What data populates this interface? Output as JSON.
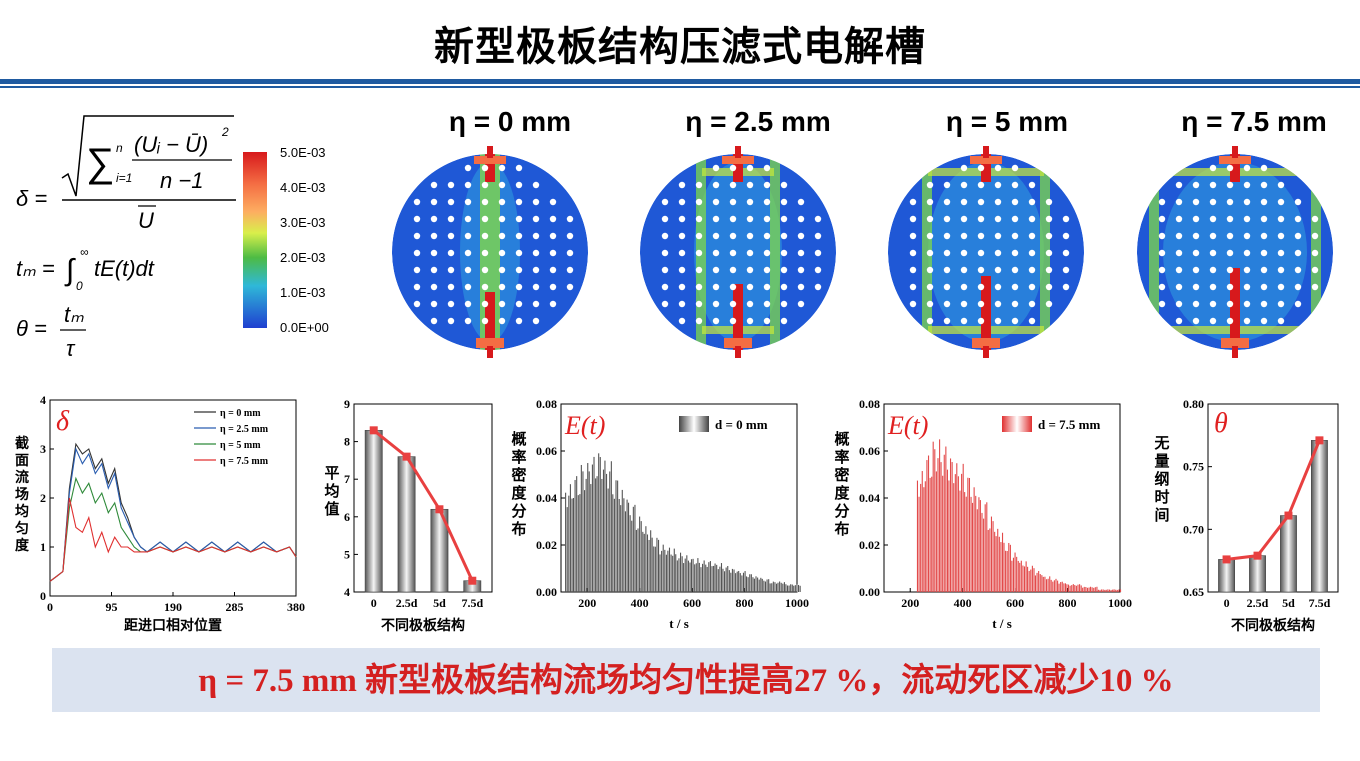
{
  "title": "新型极板结构压滤式电解槽",
  "formulas": {
    "delta_lhs": "δ =",
    "delta_sum": "∑",
    "delta_sum_lower": "i=1",
    "delta_sum_upper": "n",
    "delta_num": "(Uᵢ − Ū)",
    "delta_sq": "2",
    "delta_den": "n −1",
    "delta_outer_den": "U",
    "tm_lhs": "tₘ =",
    "tm_int": "∫",
    "tm_lower": "0",
    "tm_upper": "∞",
    "tm_body": "tE(t)dt",
    "theta_lhs": "θ =",
    "theta_num": "tₘ",
    "theta_den": "τ"
  },
  "colorbar": {
    "ticks": [
      "5.0E-03",
      "4.0E-03",
      "3.0E-03",
      "2.0E-03",
      "1.0E-03",
      "0.0E+00"
    ],
    "colors": [
      "#d7191c",
      "#fdae61",
      "#d9ef4b",
      "#4dbb44",
      "#2fb8d8",
      "#1f3fd0"
    ]
  },
  "contours": [
    {
      "label": "η = 0 mm",
      "level": 0
    },
    {
      "label": "η = 2.5 mm",
      "level": 1
    },
    {
      "label": "η = 5 mm",
      "level": 2
    },
    {
      "label": "η = 7.5 mm",
      "level": 3
    }
  ],
  "charts": {
    "uniformity": {
      "symbol": "δ",
      "ylabel": "截面流场均匀度",
      "xlabel": "距进口相对位置",
      "xticks": [
        "0",
        "95",
        "190",
        "285",
        "380"
      ],
      "yticks": [
        "0",
        "1",
        "2",
        "3",
        "4"
      ],
      "legend": [
        "η = 0 mm",
        "η = 2.5 mm",
        "η = 5 mm",
        "η = 7.5 mm"
      ],
      "colors": [
        "#333333",
        "#2a5db0",
        "#2f8a3a",
        "#e03030"
      ]
    },
    "average": {
      "ylabel": "平均值",
      "xlabel": "不同极板结构",
      "xticks": [
        "0",
        "2.5d",
        "5d",
        "7.5d"
      ],
      "yticks": [
        "4",
        "5",
        "6",
        "7",
        "8",
        "9"
      ]
    },
    "rtd0": {
      "symbol": "E(t)",
      "legend": "d = 0 mm",
      "ylabel": "概率密度分布",
      "xlabel": "t / s",
      "xticks": [
        "200",
        "400",
        "600",
        "800",
        "1000"
      ],
      "yticks": [
        "0.00",
        "0.02",
        "0.04",
        "0.06",
        "0.08"
      ]
    },
    "rtd75": {
      "symbol": "E(t)",
      "legend": "d = 7.5 mm",
      "ylabel": "概率密度分布",
      "xlabel": "t / s",
      "xticks": [
        "200",
        "400",
        "600",
        "800",
        "1000"
      ],
      "yticks": [
        "0.00",
        "0.02",
        "0.04",
        "0.06",
        "0.08"
      ]
    },
    "theta": {
      "symbol": "θ",
      "ylabel": "无量纲时间",
      "xlabel": "不同极板结构",
      "xticks": [
        "0",
        "2.5d",
        "5d",
        "7.5d"
      ],
      "yticks": [
        "0.65",
        "0.70",
        "0.75",
        "0.80"
      ]
    }
  },
  "chart_data": [
    {
      "type": "line",
      "xlabel": "距进口相对位置",
      "ylabel": "截面流场均匀度",
      "xlim": [
        0,
        380
      ],
      "ylim": [
        0,
        4
      ],
      "series": [
        {
          "name": "η = 0 mm",
          "x": [
            0,
            10,
            20,
            30,
            40,
            50,
            60,
            70,
            80,
            90,
            100,
            110,
            120,
            130,
            140,
            150,
            170,
            190,
            210,
            230,
            250,
            270,
            290,
            310,
            330,
            350,
            370,
            380
          ],
          "values": [
            0.3,
            0.4,
            0.5,
            2.2,
            3.1,
            2.9,
            3.0,
            2.6,
            2.8,
            2.3,
            2.6,
            1.9,
            1.6,
            1.2,
            1.0,
            0.9,
            1.1,
            0.9,
            1.1,
            0.9,
            1.1,
            0.9,
            1.1,
            0.9,
            1.1,
            0.9,
            1.0,
            0.8
          ]
        },
        {
          "name": "η = 2.5 mm",
          "x": [
            0,
            10,
            20,
            30,
            40,
            50,
            60,
            70,
            80,
            90,
            100,
            110,
            120,
            130,
            140,
            150,
            170,
            190,
            210,
            230,
            250,
            270,
            290,
            310,
            330,
            350,
            370,
            380
          ],
          "values": [
            0.3,
            0.4,
            0.5,
            2.1,
            3.0,
            2.7,
            2.9,
            2.5,
            2.7,
            2.2,
            2.5,
            1.8,
            1.5,
            1.2,
            1.0,
            0.9,
            1.1,
            0.9,
            1.1,
            0.9,
            1.1,
            0.9,
            1.1,
            0.9,
            1.1,
            0.9,
            1.0,
            0.8
          ]
        },
        {
          "name": "η = 5 mm",
          "x": [
            0,
            10,
            20,
            30,
            40,
            50,
            60,
            70,
            80,
            90,
            100,
            110,
            120,
            130,
            140,
            150,
            170,
            190,
            210,
            230,
            250,
            270,
            290,
            310,
            330,
            350,
            370,
            380
          ],
          "values": [
            0.3,
            0.4,
            0.5,
            1.8,
            2.4,
            2.1,
            2.3,
            1.9,
            2.1,
            1.7,
            1.9,
            1.4,
            1.2,
            1.0,
            0.9,
            0.9,
            1.0,
            0.9,
            1.0,
            0.9,
            1.0,
            0.9,
            1.0,
            0.9,
            1.0,
            0.9,
            1.0,
            0.8
          ]
        },
        {
          "name": "η = 7.5 mm",
          "x": [
            0,
            10,
            20,
            30,
            40,
            50,
            60,
            70,
            80,
            90,
            100,
            110,
            120,
            130,
            140,
            150,
            170,
            190,
            210,
            230,
            250,
            270,
            290,
            310,
            330,
            350,
            370,
            380
          ],
          "values": [
            0.3,
            0.4,
            0.5,
            2.0,
            1.4,
            1.3,
            1.6,
            1.0,
            1.3,
            0.9,
            1.2,
            1.0,
            1.0,
            0.9,
            0.9,
            0.9,
            1.0,
            0.9,
            1.0,
            0.9,
            1.0,
            0.9,
            1.0,
            0.9,
            1.0,
            0.9,
            1.0,
            0.8
          ]
        }
      ]
    },
    {
      "type": "bar",
      "xlabel": "不同极板结构",
      "ylabel": "平均值",
      "categories": [
        "0",
        "2.5d",
        "5d",
        "7.5d"
      ],
      "values": [
        8.3,
        7.6,
        6.2,
        4.3
      ],
      "ylim": [
        4,
        9
      ]
    },
    {
      "type": "bar",
      "xlabel": "t / s",
      "ylabel": "概率密度分布",
      "series": [
        {
          "name": "d = 0 mm"
        }
      ],
      "x": [
        130,
        160,
        190,
        220,
        250,
        280,
        310,
        340,
        370,
        400,
        430,
        460,
        490,
        520,
        550,
        580,
        610,
        640,
        670,
        700,
        730,
        760,
        790,
        820,
        850,
        880,
        910,
        940,
        970,
        1000
      ],
      "values": [
        0.041,
        0.045,
        0.049,
        0.052,
        0.054,
        0.05,
        0.044,
        0.039,
        0.034,
        0.029,
        0.025,
        0.021,
        0.018,
        0.017,
        0.015,
        0.014,
        0.013,
        0.012,
        0.012,
        0.011,
        0.01,
        0.009,
        0.008,
        0.007,
        0.006,
        0.005,
        0.004,
        0.004,
        0.003,
        0.003
      ],
      "xlim": [
        100,
        1000
      ],
      "ylim": [
        0,
        0.08
      ]
    },
    {
      "type": "bar",
      "xlabel": "t / s",
      "ylabel": "概率密度分布",
      "series": [
        {
          "name": "d = 7.5 mm"
        }
      ],
      "x": [
        240,
        270,
        300,
        330,
        360,
        390,
        420,
        450,
        480,
        510,
        540,
        570,
        600,
        630,
        660,
        690,
        720,
        750,
        780,
        810,
        840,
        870,
        900,
        930,
        960,
        990
      ],
      "values": [
        0.046,
        0.053,
        0.058,
        0.056,
        0.052,
        0.049,
        0.045,
        0.04,
        0.035,
        0.029,
        0.024,
        0.019,
        0.015,
        0.012,
        0.01,
        0.008,
        0.006,
        0.005,
        0.004,
        0.003,
        0.003,
        0.002,
        0.002,
        0.001,
        0.001,
        0.001
      ],
      "xlim": [
        100,
        1000
      ],
      "ylim": [
        0,
        0.08
      ]
    },
    {
      "type": "bar",
      "xlabel": "不同极板结构",
      "ylabel": "无量纲时间",
      "categories": [
        "0",
        "2.5d",
        "5d",
        "7.5d"
      ],
      "values": [
        0.676,
        0.679,
        0.711,
        0.771
      ],
      "ylim": [
        0.65,
        0.8
      ]
    }
  ],
  "banner": {
    "eta": "η = 7.5 mm ",
    "text1": "新型极板结构流场均匀性提高",
    "num1": "27 %",
    "text2": "，流动死区减少",
    "num2": "10 %"
  }
}
